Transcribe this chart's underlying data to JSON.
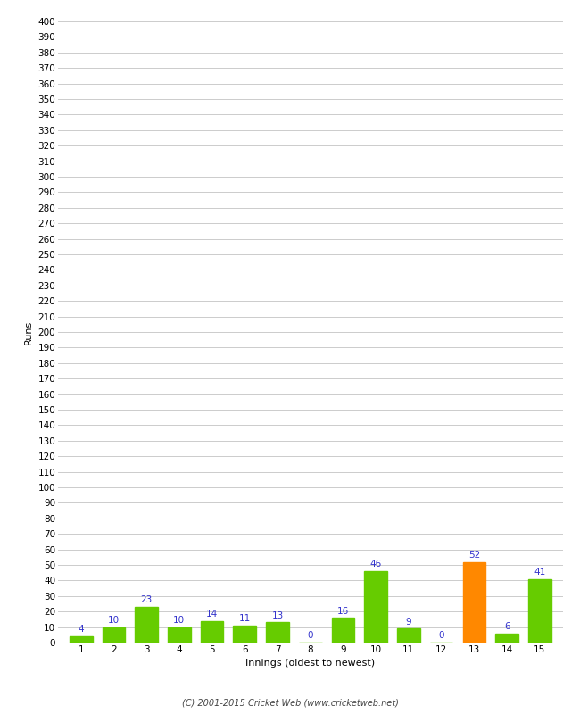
{
  "xlabel": "Innings (oldest to newest)",
  "ylabel": "Runs",
  "categories": [
    "1",
    "2",
    "3",
    "4",
    "5",
    "6",
    "7",
    "8",
    "9",
    "10",
    "11",
    "12",
    "13",
    "14",
    "15"
  ],
  "values": [
    4,
    10,
    23,
    10,
    14,
    11,
    13,
    0,
    16,
    46,
    9,
    0,
    52,
    6,
    41
  ],
  "bar_colors": [
    "#66cc00",
    "#66cc00",
    "#66cc00",
    "#66cc00",
    "#66cc00",
    "#66cc00",
    "#66cc00",
    "#66cc00",
    "#66cc00",
    "#66cc00",
    "#66cc00",
    "#66cc00",
    "#ff8800",
    "#66cc00",
    "#66cc00"
  ],
  "ylim": [
    0,
    400
  ],
  "ytick_step": 10,
  "footer": "(C) 2001-2015 Cricket Web (www.cricketweb.net)",
  "background_color": "#ffffff",
  "grid_color": "#cccccc",
  "label_color": "#3333cc",
  "label_fontsize": 7.5,
  "axis_fontsize": 7.5,
  "xlabel_fontsize": 8,
  "ylabel_fontsize": 8
}
